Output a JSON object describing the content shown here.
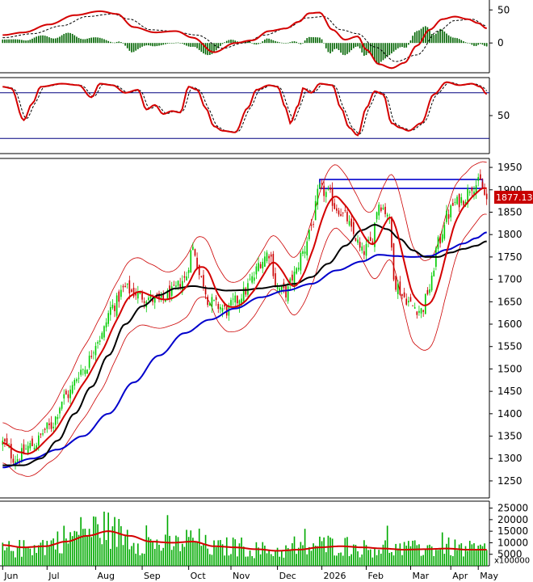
{
  "chart_data": {
    "type": "candlestick",
    "x_month_labels": [
      "Jun",
      "Jul",
      "Aug",
      "Sep",
      "Oct",
      "Nov",
      "Dec",
      "2026",
      "Feb",
      "Mar",
      "Apr",
      "May"
    ],
    "last_price_label": "1877.130",
    "colors": {
      "up": "#00cc00",
      "down": "#cc0000",
      "ma_short": "#d40000",
      "ma_mid": "#000000",
      "ma_long": "#0000cc",
      "bollinger": "#cc0000",
      "resistance_box": "#0000cc",
      "volume_bar": "#00aa00",
      "volume_ma": "#d40000",
      "macd_line": "#d40000",
      "macd_signal": "#000000",
      "macd_hist": "#006400",
      "stoch_k": "#d40000",
      "stoch_d": "#000000",
      "stoch_levels": "#000080"
    },
    "panels": {
      "macd": {
        "yticks": [
          50,
          0
        ],
        "ylim": [
          -45,
          65
        ],
        "keypoints": [
          [
            0,
            12
          ],
          [
            10,
            16
          ],
          [
            22,
            28
          ],
          [
            34,
            42
          ],
          [
            46,
            48
          ],
          [
            54,
            44
          ],
          [
            62,
            24
          ],
          [
            72,
            16
          ],
          [
            82,
            18
          ],
          [
            90,
            8
          ],
          [
            100,
            -14
          ],
          [
            110,
            0
          ],
          [
            118,
            4
          ],
          [
            126,
            18
          ],
          [
            134,
            22
          ],
          [
            140,
            32
          ],
          [
            145,
            45
          ],
          [
            150,
            46
          ],
          [
            156,
            20
          ],
          [
            162,
            5
          ],
          [
            168,
            10
          ],
          [
            172,
            -10
          ],
          [
            178,
            -32
          ],
          [
            184,
            -38
          ],
          [
            190,
            -30
          ],
          [
            196,
            -4
          ],
          [
            202,
            20
          ],
          [
            208,
            36
          ],
          [
            214,
            40
          ],
          [
            220,
            36
          ],
          [
            225,
            30
          ],
          [
            229,
            22
          ]
        ],
        "signal_keypoints": [
          [
            0,
            8
          ],
          [
            14,
            14
          ],
          [
            28,
            26
          ],
          [
            40,
            40
          ],
          [
            52,
            44
          ],
          [
            60,
            36
          ],
          [
            70,
            20
          ],
          [
            80,
            18
          ],
          [
            92,
            12
          ],
          [
            104,
            -8
          ],
          [
            114,
            0
          ],
          [
            124,
            12
          ],
          [
            134,
            22
          ],
          [
            144,
            38
          ],
          [
            152,
            40
          ],
          [
            160,
            20
          ],
          [
            168,
            14
          ],
          [
            176,
            -6
          ],
          [
            186,
            -28
          ],
          [
            196,
            -18
          ],
          [
            206,
            18
          ],
          [
            214,
            34
          ],
          [
            222,
            36
          ],
          [
            229,
            26
          ]
        ]
      },
      "stochastic": {
        "yticks": [
          50
        ],
        "levels": [
          80,
          20
        ],
        "ylim": [
          0,
          100
        ],
        "keypoints": [
          [
            0,
            88
          ],
          [
            4,
            86
          ],
          [
            10,
            44
          ],
          [
            14,
            66
          ],
          [
            18,
            88
          ],
          [
            28,
            92
          ],
          [
            36,
            90
          ],
          [
            42,
            74
          ],
          [
            46,
            92
          ],
          [
            52,
            90
          ],
          [
            58,
            80
          ],
          [
            64,
            84
          ],
          [
            68,
            58
          ],
          [
            72,
            64
          ],
          [
            76,
            52
          ],
          [
            80,
            56
          ],
          [
            84,
            54
          ],
          [
            88,
            88
          ],
          [
            92,
            84
          ],
          [
            96,
            60
          ],
          [
            100,
            36
          ],
          [
            104,
            30
          ],
          [
            110,
            28
          ],
          [
            116,
            60
          ],
          [
            120,
            84
          ],
          [
            126,
            90
          ],
          [
            130,
            88
          ],
          [
            134,
            60
          ],
          [
            136,
            40
          ],
          [
            140,
            64
          ],
          [
            142,
            86
          ],
          [
            146,
            80
          ],
          [
            150,
            92
          ],
          [
            156,
            90
          ],
          [
            160,
            60
          ],
          [
            164,
            34
          ],
          [
            168,
            24
          ],
          [
            172,
            60
          ],
          [
            176,
            82
          ],
          [
            180,
            78
          ],
          [
            184,
            40
          ],
          [
            188,
            34
          ],
          [
            192,
            30
          ],
          [
            198,
            40
          ],
          [
            204,
            78
          ],
          [
            210,
            94
          ],
          [
            216,
            90
          ],
          [
            222,
            92
          ],
          [
            226,
            88
          ],
          [
            229,
            78
          ]
        ],
        "d_offset": 1.5
      },
      "price": {
        "yticks": [
          1950,
          1900,
          1850,
          1800,
          1750,
          1700,
          1650,
          1600,
          1550,
          1500,
          1450,
          1400,
          1350,
          1300,
          1250
        ],
        "ylim": [
          1212,
          1970
        ],
        "close_keypoints": [
          [
            0,
            1335
          ],
          [
            6,
            1300
          ],
          [
            14,
            1330
          ],
          [
            22,
            1370
          ],
          [
            30,
            1440
          ],
          [
            38,
            1500
          ],
          [
            46,
            1570
          ],
          [
            52,
            1640
          ],
          [
            58,
            1680
          ],
          [
            62,
            1670
          ],
          [
            68,
            1660
          ],
          [
            74,
            1650
          ],
          [
            80,
            1670
          ],
          [
            86,
            1700
          ],
          [
            90,
            1770
          ],
          [
            94,
            1700
          ],
          [
            98,
            1650
          ],
          [
            102,
            1640
          ],
          [
            106,
            1630
          ],
          [
            110,
            1650
          ],
          [
            114,
            1670
          ],
          [
            118,
            1700
          ],
          [
            122,
            1740
          ],
          [
            126,
            1760
          ],
          [
            130,
            1680
          ],
          [
            134,
            1670
          ],
          [
            138,
            1710
          ],
          [
            142,
            1760
          ],
          [
            146,
            1820
          ],
          [
            150,
            1900
          ],
          [
            154,
            1890
          ],
          [
            158,
            1860
          ],
          [
            162,
            1840
          ],
          [
            166,
            1800
          ],
          [
            170,
            1760
          ],
          [
            174,
            1780
          ],
          [
            178,
            1870
          ],
          [
            182,
            1850
          ],
          [
            186,
            1690
          ],
          [
            190,
            1660
          ],
          [
            194,
            1640
          ],
          [
            198,
            1630
          ],
          [
            202,
            1680
          ],
          [
            206,
            1780
          ],
          [
            210,
            1840
          ],
          [
            214,
            1870
          ],
          [
            218,
            1880
          ],
          [
            222,
            1910
          ],
          [
            226,
            1915
          ],
          [
            229,
            1877
          ]
        ],
        "ma_mid_keypoints": [
          [
            0,
            1285
          ],
          [
            10,
            1285
          ],
          [
            18,
            1300
          ],
          [
            26,
            1340
          ],
          [
            34,
            1400
          ],
          [
            42,
            1460
          ],
          [
            50,
            1530
          ],
          [
            58,
            1600
          ],
          [
            66,
            1640
          ],
          [
            74,
            1665
          ],
          [
            82,
            1680
          ],
          [
            90,
            1685
          ],
          [
            98,
            1680
          ],
          [
            106,
            1675
          ],
          [
            114,
            1676
          ],
          [
            122,
            1680
          ],
          [
            130,
            1685
          ],
          [
            138,
            1690
          ],
          [
            146,
            1705
          ],
          [
            154,
            1735
          ],
          [
            162,
            1775
          ],
          [
            170,
            1810
          ],
          [
            176,
            1822
          ],
          [
            182,
            1812
          ],
          [
            188,
            1790
          ],
          [
            194,
            1765
          ],
          [
            200,
            1750
          ],
          [
            206,
            1750
          ],
          [
            212,
            1760
          ],
          [
            218,
            1768
          ],
          [
            224,
            1775
          ],
          [
            229,
            1785
          ]
        ],
        "ma_long_keypoints": [
          [
            0,
            1280
          ],
          [
            14,
            1300
          ],
          [
            26,
            1320
          ],
          [
            38,
            1350
          ],
          [
            50,
            1400
          ],
          [
            62,
            1470
          ],
          [
            74,
            1530
          ],
          [
            86,
            1580
          ],
          [
            98,
            1610
          ],
          [
            110,
            1635
          ],
          [
            122,
            1660
          ],
          [
            134,
            1675
          ],
          [
            146,
            1690
          ],
          [
            158,
            1720
          ],
          [
            170,
            1740
          ],
          [
            178,
            1755
          ],
          [
            186,
            1752
          ],
          [
            194,
            1750
          ],
          [
            202,
            1752
          ],
          [
            210,
            1766
          ],
          [
            218,
            1780
          ],
          [
            224,
            1792
          ],
          [
            229,
            1805
          ]
        ],
        "band_width_keypoints": [
          [
            0,
            45
          ],
          [
            10,
            50
          ],
          [
            20,
            55
          ],
          [
            30,
            70
          ],
          [
            40,
            80
          ],
          [
            50,
            85
          ],
          [
            60,
            80
          ],
          [
            70,
            70
          ],
          [
            80,
            60
          ],
          [
            90,
            70
          ],
          [
            100,
            62
          ],
          [
            110,
            55
          ],
          [
            120,
            58
          ],
          [
            130,
            60
          ],
          [
            140,
            65
          ],
          [
            150,
            75
          ],
          [
            160,
            70
          ],
          [
            170,
            60
          ],
          [
            180,
            90
          ],
          [
            190,
            110
          ],
          [
            200,
            100
          ],
          [
            210,
            90
          ],
          [
            220,
            70
          ],
          [
            229,
            58
          ]
        ],
        "resistance_box": {
          "start_index": 150,
          "end_index": 227,
          "top": 1923,
          "bottom": 1903
        }
      },
      "volume": {
        "yticks": [
          25000,
          20000,
          15000,
          10000,
          5000
        ],
        "unit_label": "x100000",
        "ylim": [
          0,
          28000
        ],
        "keypoints": [
          [
            0,
            7000
          ],
          [
            10,
            7500
          ],
          [
            20,
            9000
          ],
          [
            30,
            12000
          ],
          [
            40,
            15000
          ],
          [
            46,
            16500
          ],
          [
            56,
            14000
          ],
          [
            66,
            10000
          ],
          [
            80,
            9000
          ],
          [
            90,
            11500
          ],
          [
            100,
            7500
          ],
          [
            110,
            8500
          ],
          [
            120,
            7000
          ],
          [
            130,
            6500
          ],
          [
            140,
            7000
          ],
          [
            150,
            9000
          ],
          [
            160,
            9000
          ],
          [
            170,
            7500
          ],
          [
            180,
            8000
          ],
          [
            190,
            7000
          ],
          [
            200,
            7500
          ],
          [
            210,
            8000
          ],
          [
            220,
            7000
          ],
          [
            229,
            7000
          ]
        ],
        "ma_keypoints": [
          [
            0,
            9000
          ],
          [
            10,
            8000
          ],
          [
            20,
            8500
          ],
          [
            30,
            10500
          ],
          [
            40,
            13000
          ],
          [
            50,
            15000
          ],
          [
            60,
            13000
          ],
          [
            70,
            10500
          ],
          [
            80,
            10000
          ],
          [
            90,
            10500
          ],
          [
            100,
            8500
          ],
          [
            110,
            8000
          ],
          [
            120,
            7200
          ],
          [
            130,
            6500
          ],
          [
            140,
            7000
          ],
          [
            150,
            8000
          ],
          [
            160,
            8500
          ],
          [
            170,
            8000
          ],
          [
            180,
            7500
          ],
          [
            190,
            7000
          ],
          [
            200,
            7200
          ],
          [
            210,
            7500
          ],
          [
            220,
            7000
          ],
          [
            229,
            7000
          ]
        ]
      }
    },
    "bar_count": 230
  }
}
